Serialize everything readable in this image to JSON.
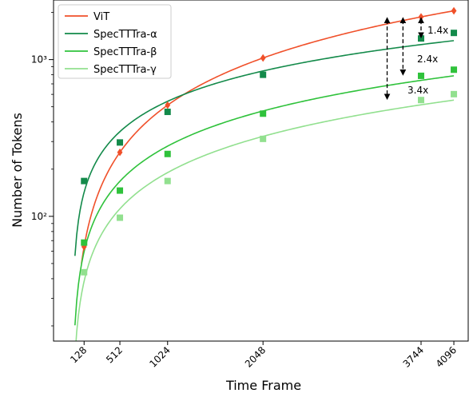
{
  "chart_data": {
    "type": "line",
    "xlabel": "Time Frame",
    "ylabel": "Number of Tokens",
    "x_ticks": [
      128,
      512,
      1024,
      2048,
      3744,
      4096
    ],
    "x_tick_labels": [
      "128",
      "512",
      "1024",
      "2048",
      "3744",
      "4096"
    ],
    "y_scale": "log",
    "y_tick_labels": [
      "10²",
      "10³"
    ],
    "xlim": [
      -200,
      4250
    ],
    "ylim": [
      16,
      2400
    ],
    "legend_position": "top-left",
    "series": [
      {
        "name": "ViT",
        "color": "#f0502a",
        "marker": "diamond",
        "x": [
          128,
          512,
          1024,
          2048,
          3744,
          4096
        ],
        "values": [
          64,
          256,
          512,
          1024,
          1872,
          2048
        ]
      },
      {
        "name": "SpecTTTra-α",
        "color": "#138a4a",
        "marker": "square",
        "x": [
          128,
          512,
          1024,
          2048,
          3744,
          4096
        ],
        "values": [
          168,
          296,
          464,
          800,
          1364,
          1480
        ]
      },
      {
        "name": "SpecTTTra-β",
        "color": "#2fc23b",
        "marker": "square",
        "x": [
          128,
          512,
          1024,
          2048,
          3744,
          4096
        ],
        "values": [
          68,
          146,
          250,
          452,
          788,
          862
        ]
      },
      {
        "name": "SpecTTTra-γ",
        "color": "#92e08f",
        "marker": "square",
        "x": [
          128,
          512,
          1024,
          2048,
          3744,
          4096
        ],
        "values": [
          44,
          98,
          168,
          312,
          552,
          602
        ]
      }
    ],
    "annotations": [
      {
        "text": "1.4x",
        "x": 3744,
        "y_top": 1872,
        "y_bottom": 1364
      },
      {
        "text": "2.4x",
        "x": 3550,
        "y_top": 1872,
        "y_bottom": 788
      },
      {
        "text": "3.4x",
        "x": 3380,
        "y_top": 1872,
        "y_bottom": 552
      }
    ]
  }
}
